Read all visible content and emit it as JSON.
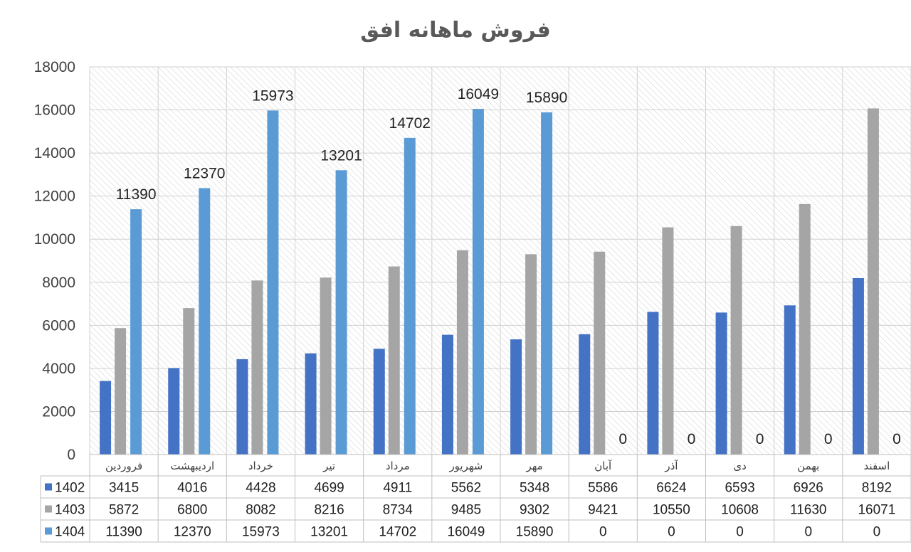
{
  "chart_data": {
    "type": "bar",
    "title": "فروش ماهانه افق",
    "xlabel": "",
    "ylabel": "",
    "ylim": [
      0,
      18000
    ],
    "yticks": [
      0,
      2000,
      4000,
      6000,
      8000,
      10000,
      12000,
      14000,
      16000,
      18000
    ],
    "grid": true,
    "legend": "data table below chart",
    "categories": [
      "فروردین",
      "اردیبهشت",
      "خرداد",
      "تیر",
      "مرداد",
      "شهریور",
      "مهر",
      "آبان",
      "آذر",
      "دی",
      "بهمن",
      "اسفند"
    ],
    "series": [
      {
        "name": "1402",
        "color": "#4472C4",
        "values": [
          3415,
          4016,
          4428,
          4699,
          4911,
          5562,
          5348,
          5586,
          6624,
          6593,
          6926,
          8192
        ],
        "show_labels": false
      },
      {
        "name": "1403",
        "color": "#A5A5A5",
        "values": [
          5872,
          6800,
          8082,
          8216,
          8734,
          9485,
          9302,
          9421,
          10550,
          10608,
          11630,
          16071
        ],
        "show_labels": false
      },
      {
        "name": "1404",
        "color": "#5B9BD5",
        "values": [
          11390,
          12370,
          15973,
          13201,
          14702,
          16049,
          15890,
          0,
          0,
          0,
          0,
          0
        ],
        "show_labels": true
      }
    ]
  }
}
